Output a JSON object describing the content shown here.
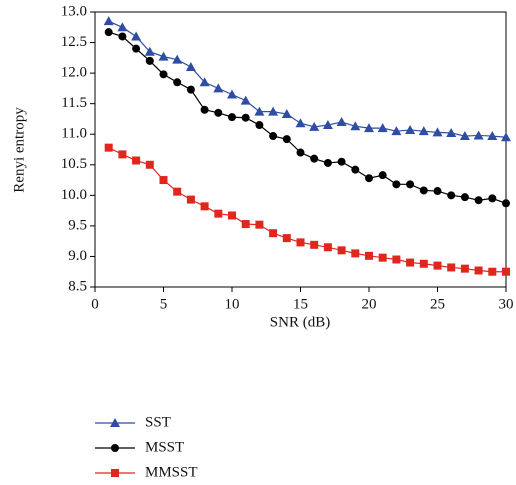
{
  "chart_data": {
    "type": "line",
    "x_label": "SNR (dB)",
    "y_label": "Renyi entropy",
    "x": [
      1,
      2,
      3,
      4,
      5,
      6,
      7,
      8,
      9,
      10,
      11,
      12,
      13,
      14,
      15,
      16,
      17,
      18,
      19,
      20,
      21,
      22,
      23,
      24,
      25,
      26,
      27,
      28,
      29,
      30
    ],
    "series": [
      {
        "name": "SST",
        "color": "#2f4ea3",
        "marker": "triangle",
        "values": [
          12.85,
          12.75,
          12.6,
          12.35,
          12.27,
          12.22,
          12.1,
          11.85,
          11.75,
          11.65,
          11.55,
          11.37,
          11.37,
          11.33,
          11.18,
          11.12,
          11.15,
          11.2,
          11.13,
          11.1,
          11.1,
          11.05,
          11.07,
          11.05,
          11.03,
          11.02,
          10.97,
          10.98,
          10.97,
          10.95
        ]
      },
      {
        "name": "MSST",
        "color": "#000000",
        "marker": "circle",
        "values": [
          12.67,
          12.6,
          12.4,
          12.2,
          11.98,
          11.85,
          11.73,
          11.4,
          11.35,
          11.28,
          11.27,
          11.15,
          10.97,
          10.92,
          10.7,
          10.6,
          10.53,
          10.55,
          10.42,
          10.28,
          10.33,
          10.18,
          10.18,
          10.08,
          10.07,
          10.0,
          9.97,
          9.92,
          9.95,
          9.87
        ]
      },
      {
        "name": "MMSST",
        "color": "#e0261f",
        "marker": "square",
        "values": [
          10.78,
          10.67,
          10.57,
          10.5,
          10.25,
          10.06,
          9.93,
          9.82,
          9.7,
          9.67,
          9.53,
          9.52,
          9.38,
          9.3,
          9.23,
          9.19,
          9.15,
          9.1,
          9.05,
          9.01,
          8.98,
          8.95,
          8.9,
          8.88,
          8.85,
          8.82,
          8.8,
          8.77,
          8.75,
          8.75
        ]
      }
    ],
    "xlim": [
      0,
      30
    ],
    "xticks": [
      0,
      5,
      10,
      15,
      20,
      25,
      30
    ],
    "ylim": [
      8.5,
      13.0
    ],
    "yticks": [
      8.5,
      {
        "value": 9.0,
        "label": "9.0"
      },
      9.5,
      {
        "value": 10.0,
        "label": "10.0"
      },
      10.5,
      {
        "value": 11.0,
        "label": "11.0"
      },
      11.5,
      {
        "value": 12.0,
        "label": "12.0"
      },
      12.5,
      {
        "value": 13.0,
        "label": "13.0"
      }
    ],
    "grid": false,
    "legend": "below"
  }
}
